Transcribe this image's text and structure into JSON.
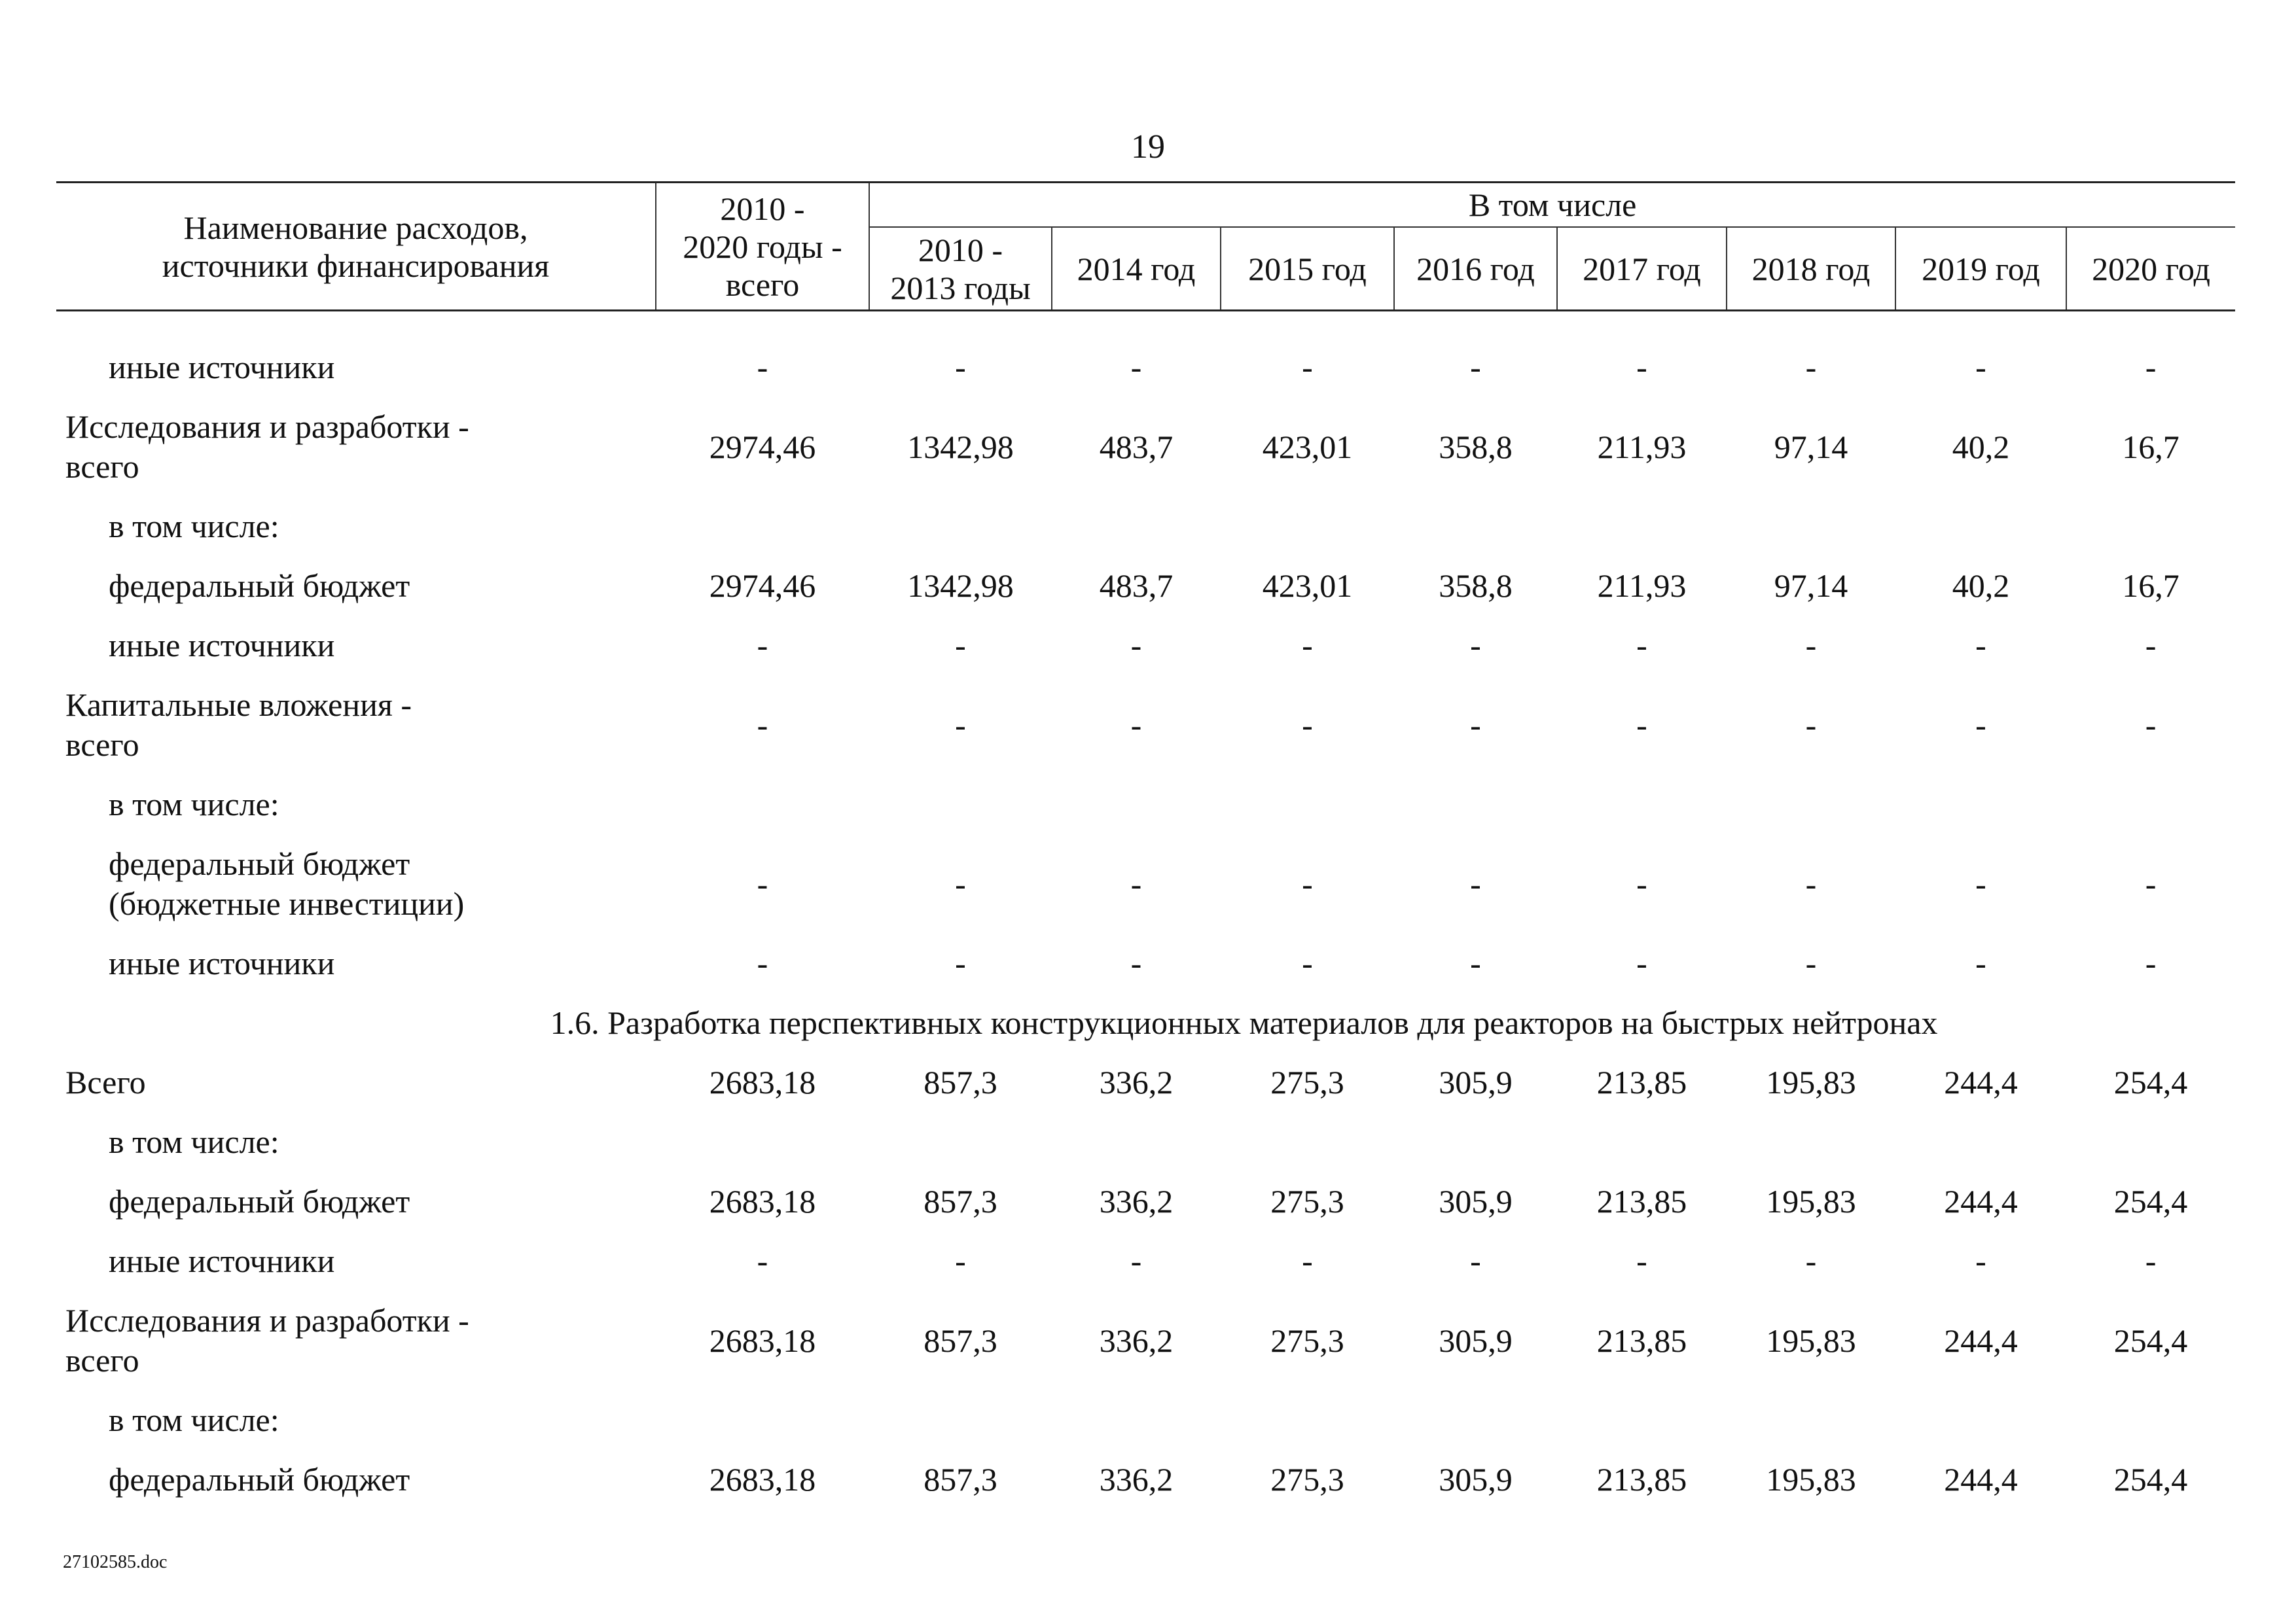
{
  "page_number": "19",
  "table": {
    "header": {
      "name": "Наименование расходов,\nисточники финансирования",
      "total": "2010 -\n2020 годы -\nвсего",
      "group": "В том числе",
      "years": [
        "2010 -\n2013 годы",
        "2014 год",
        "2015 год",
        "2016 год",
        "2017 год",
        "2018 год",
        "2019 год",
        "2020 год"
      ]
    },
    "rows": [
      {
        "label": "иные источники",
        "indent": true,
        "values": [
          "-",
          "-",
          "-",
          "-",
          "-",
          "-",
          "-",
          "-",
          "-"
        ]
      },
      {
        "label": "Исследования и разработки -\nвсего",
        "indent": false,
        "values": [
          "2974,46",
          "1342,98",
          "483,7",
          "423,01",
          "358,8",
          "211,93",
          "97,14",
          "40,2",
          "16,7"
        ]
      },
      {
        "label": "в том числе:",
        "indent": true,
        "values": []
      },
      {
        "label": "федеральный бюджет",
        "indent": true,
        "values": [
          "2974,46",
          "1342,98",
          "483,7",
          "423,01",
          "358,8",
          "211,93",
          "97,14",
          "40,2",
          "16,7"
        ]
      },
      {
        "label": "иные источники",
        "indent": true,
        "values": [
          "-",
          "-",
          "-",
          "-",
          "-",
          "-",
          "-",
          "-",
          "-"
        ]
      },
      {
        "label": "Капитальные вложения -\nвсего",
        "indent": false,
        "values": [
          "-",
          "-",
          "-",
          "-",
          "-",
          "-",
          "-",
          "-",
          "-"
        ]
      },
      {
        "label": "в том числе:",
        "indent": true,
        "values": []
      },
      {
        "label": "федеральный бюджет\n(бюджетные инвестиции)",
        "indent": true,
        "values": [
          "-",
          "-",
          "-",
          "-",
          "-",
          "-",
          "-",
          "-",
          "-"
        ]
      },
      {
        "label": "иные источники",
        "indent": true,
        "values": [
          "-",
          "-",
          "-",
          "-",
          "-",
          "-",
          "-",
          "-",
          "-"
        ]
      },
      {
        "section": "1.6. Разработка перспективных конструкционных материалов для реакторов на быстрых нейтронах"
      },
      {
        "label": "Всего",
        "indent": false,
        "values": [
          "2683,18",
          "857,3",
          "336,2",
          "275,3",
          "305,9",
          "213,85",
          "195,83",
          "244,4",
          "254,4"
        ]
      },
      {
        "label": "в том числе:",
        "indent": true,
        "values": []
      },
      {
        "label": "федеральный бюджет",
        "indent": true,
        "values": [
          "2683,18",
          "857,3",
          "336,2",
          "275,3",
          "305,9",
          "213,85",
          "195,83",
          "244,4",
          "254,4"
        ]
      },
      {
        "label": "иные источники",
        "indent": true,
        "values": [
          "-",
          "-",
          "-",
          "-",
          "-",
          "-",
          "-",
          "-",
          "-"
        ]
      },
      {
        "label": "Исследования и разработки -\nвсего",
        "indent": false,
        "values": [
          "2683,18",
          "857,3",
          "336,2",
          "275,3",
          "305,9",
          "213,85",
          "195,83",
          "244,4",
          "254,4"
        ]
      },
      {
        "label": "в том числе:",
        "indent": true,
        "values": []
      },
      {
        "label": "федеральный бюджет",
        "indent": true,
        "values": [
          "2683,18",
          "857,3",
          "336,2",
          "275,3",
          "305,9",
          "213,85",
          "195,83",
          "244,4",
          "254,4"
        ]
      }
    ]
  },
  "footer": "27102585.doc"
}
